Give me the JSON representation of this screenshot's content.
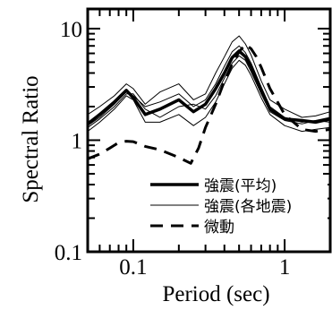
{
  "chart_data": {
    "type": "line",
    "title": "",
    "xlabel": "Period (sec)",
    "ylabel": "Spectral Ratio",
    "xscale": "log",
    "yscale": "log",
    "xlim": [
      0.05,
      2.0
    ],
    "ylim": [
      0.1,
      15
    ],
    "x_ticks": [
      {
        "value": 0.1,
        "label": "0.1"
      },
      {
        "value": 1,
        "label": "1"
      }
    ],
    "y_ticks": [
      {
        "value": 0.1,
        "label": "0.1"
      },
      {
        "value": 1,
        "label": "1"
      },
      {
        "value": 10,
        "label": "10"
      }
    ],
    "grid": false,
    "legend_position": "lower-right",
    "series": [
      {
        "name": "強震(平均)",
        "style": "thick-solid",
        "color": "#000000",
        "x": [
          0.05,
          0.06,
          0.075,
          0.09,
          0.1,
          0.12,
          0.15,
          0.2,
          0.25,
          0.3,
          0.35,
          0.4,
          0.45,
          0.5,
          0.55,
          0.6,
          0.7,
          0.8,
          1.0,
          1.3,
          1.6,
          2.0
        ],
        "y": [
          1.4,
          1.7,
          2.2,
          2.8,
          2.4,
          1.7,
          1.9,
          2.3,
          1.8,
          2.1,
          2.9,
          4.0,
          5.5,
          6.3,
          5.6,
          4.5,
          2.8,
          1.9,
          1.55,
          1.5,
          1.45,
          1.55
        ]
      },
      {
        "name": "強震(各地震)",
        "style": "thin-solid",
        "color": "#000000",
        "x": [
          0.05,
          0.06,
          0.075,
          0.09,
          0.1,
          0.12,
          0.15,
          0.2,
          0.25,
          0.3,
          0.35,
          0.4,
          0.45,
          0.5,
          0.55,
          0.6,
          0.7,
          0.8,
          1.0,
          1.3,
          1.6,
          2.0
        ],
        "y": [
          1.7,
          2.0,
          2.5,
          3.2,
          2.9,
          2.1,
          2.7,
          3.2,
          2.3,
          2.6,
          4.0,
          5.6,
          7.6,
          8.6,
          7.3,
          5.8,
          3.4,
          2.3,
          1.9,
          1.6,
          1.65,
          1.8
        ]
      },
      {
        "name": "",
        "style": "thin-solid",
        "color": "#000000",
        "x": [
          0.05,
          0.06,
          0.075,
          0.09,
          0.1,
          0.12,
          0.15,
          0.2,
          0.25,
          0.3,
          0.35,
          0.4,
          0.45,
          0.5,
          0.55,
          0.6,
          0.7,
          0.8,
          1.0,
          1.3,
          1.6,
          2.0
        ],
        "y": [
          1.2,
          1.45,
          1.9,
          2.5,
          2.3,
          1.45,
          1.45,
          1.7,
          1.35,
          1.6,
          2.2,
          3.2,
          4.4,
          5.2,
          4.7,
          3.8,
          2.4,
          1.7,
          1.35,
          1.2,
          1.25,
          1.3
        ]
      },
      {
        "name": "",
        "style": "thin-solid",
        "color": "#000000",
        "x": [
          0.05,
          0.06,
          0.075,
          0.09,
          0.1,
          0.12,
          0.15,
          0.2,
          0.25,
          0.3,
          0.35,
          0.4,
          0.45,
          0.5,
          0.55,
          0.6,
          0.7,
          0.8,
          1.0,
          1.3,
          1.6,
          2.0
        ],
        "y": [
          1.3,
          1.55,
          2.0,
          2.6,
          2.6,
          1.9,
          1.6,
          2.0,
          2.1,
          1.9,
          2.5,
          3.6,
          4.9,
          5.7,
          5.2,
          4.1,
          2.6,
          1.8,
          1.5,
          1.4,
          1.5,
          1.45
        ]
      },
      {
        "name": "",
        "style": "thin-solid",
        "color": "#000000",
        "x": [
          0.05,
          0.06,
          0.075,
          0.09,
          0.1,
          0.12,
          0.15,
          0.2,
          0.25,
          0.3,
          0.35,
          0.4,
          0.45,
          0.5,
          0.55,
          0.6,
          0.7,
          0.8,
          1.0,
          1.3,
          1.6,
          2.0
        ],
        "y": [
          1.35,
          1.6,
          2.1,
          2.7,
          2.5,
          2.0,
          2.2,
          2.6,
          2.0,
          2.3,
          3.2,
          4.6,
          6.2,
          7.0,
          6.1,
          4.9,
          3.0,
          2.0,
          1.6,
          1.45,
          1.5,
          1.6
        ]
      },
      {
        "name": "微動",
        "style": "dashed",
        "color": "#000000",
        "x": [
          0.05,
          0.06,
          0.07,
          0.08,
          0.09,
          0.1,
          0.12,
          0.15,
          0.2,
          0.24,
          0.27,
          0.3,
          0.35,
          0.4,
          0.45,
          0.5,
          0.55,
          0.6,
          0.65,
          0.7,
          0.8,
          1.0,
          1.3,
          1.6,
          2.0
        ],
        "y": [
          0.68,
          0.75,
          0.85,
          0.95,
          0.98,
          0.97,
          0.88,
          0.82,
          0.7,
          0.62,
          0.85,
          1.3,
          2.1,
          3.4,
          4.8,
          6.2,
          7.2,
          6.6,
          5.6,
          4.5,
          2.9,
          1.7,
          1.25,
          1.2,
          1.25
        ]
      }
    ]
  }
}
